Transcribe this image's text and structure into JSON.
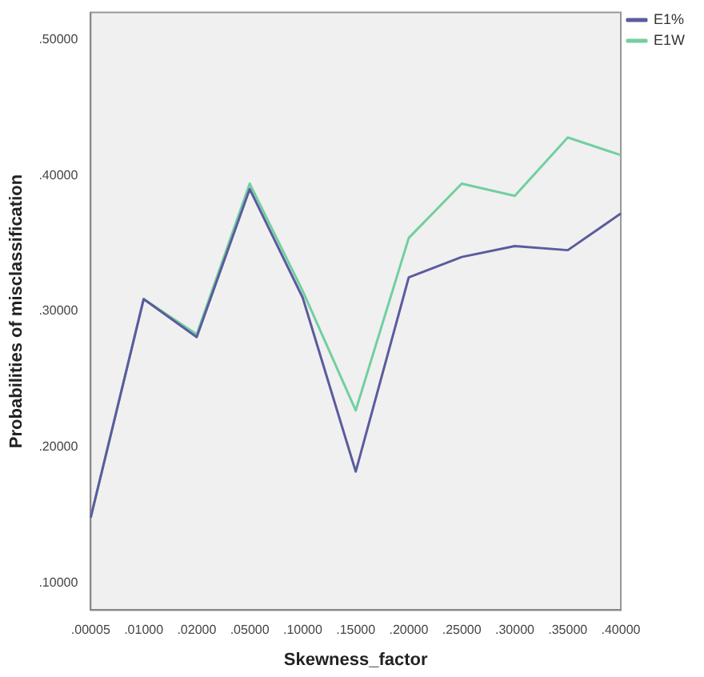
{
  "chart_data": {
    "type": "line",
    "xlabel": "Skewness_factor",
    "ylabel": "Probabilities of misclassification",
    "categories": [
      ".00005",
      ".01000",
      ".02000",
      ".05000",
      ".10000",
      ".15000",
      ".20000",
      ".25000",
      ".30000",
      ".35000",
      ".40000"
    ],
    "series": [
      {
        "name": "E1%",
        "color": "#5b5b9e",
        "values": [
          0.148,
          0.309,
          0.281,
          0.39,
          0.31,
          0.182,
          0.325,
          0.34,
          0.348,
          0.345,
          0.372
        ]
      },
      {
        "name": "E1W",
        "color": "#72cfa0",
        "values": [
          0.148,
          0.309,
          0.283,
          0.394,
          0.315,
          0.227,
          0.354,
          0.394,
          0.385,
          0.428,
          0.415
        ]
      }
    ],
    "ylim": [
      0.08,
      0.52
    ],
    "yticks": [
      {
        "value": 0.1,
        "label": ".10000"
      },
      {
        "value": 0.2,
        "label": ".20000"
      },
      {
        "value": 0.3,
        "label": ".30000"
      },
      {
        "value": 0.4,
        "label": ".40000"
      },
      {
        "value": 0.5,
        "label": ".50000"
      }
    ],
    "grid": false,
    "legend": "top right",
    "marker": "none",
    "line_style": "solid"
  }
}
